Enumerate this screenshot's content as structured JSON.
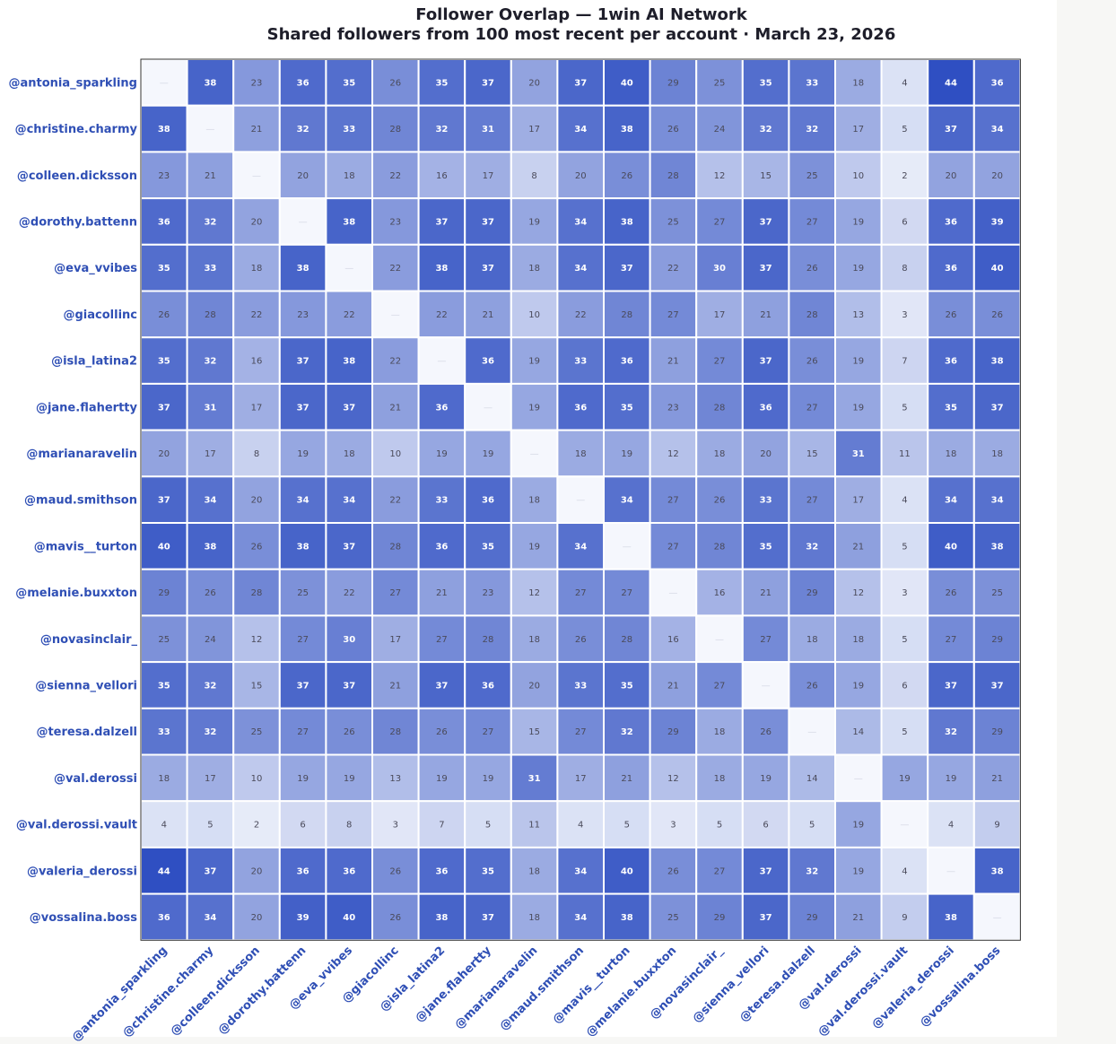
{
  "chart_data": {
    "type": "heatmap",
    "title": "Follower Overlap — 1win AI Network",
    "subtitle": "Shared followers from 100 most recent per account · March 23, 2026",
    "diagonal_label": "—",
    "labels": [
      "@antonia_sparkling",
      "@christine.charmy",
      "@colleen.dicksson",
      "@dorothy.battenn",
      "@eva_vvibes",
      "@giacollinc",
      "@isla_latina2",
      "@jane.flahertty",
      "@marianaravelin",
      "@maud.smithson",
      "@mavis__turton",
      "@melanie.buxxton",
      "@novasinclair_",
      "@sienna_vellori",
      "@teresa.dalzell",
      "@val.derossi",
      "@val.derossi.vault",
      "@valeria_derossi",
      "@vossalina.boss"
    ],
    "values": [
      [
        null,
        38,
        23,
        36,
        35,
        26,
        35,
        37,
        20,
        37,
        40,
        29,
        25,
        35,
        33,
        18,
        4,
        44,
        36
      ],
      [
        38,
        null,
        21,
        32,
        33,
        28,
        32,
        31,
        17,
        34,
        38,
        26,
        24,
        32,
        32,
        17,
        5,
        37,
        34
      ],
      [
        23,
        21,
        null,
        20,
        18,
        22,
        16,
        17,
        8,
        20,
        26,
        28,
        12,
        15,
        25,
        10,
        2,
        20,
        20
      ],
      [
        36,
        32,
        20,
        null,
        38,
        23,
        37,
        37,
        19,
        34,
        38,
        25,
        27,
        37,
        27,
        19,
        6,
        36,
        39
      ],
      [
        35,
        33,
        18,
        38,
        null,
        22,
        38,
        37,
        18,
        34,
        37,
        22,
        30,
        37,
        26,
        19,
        8,
        36,
        40
      ],
      [
        26,
        28,
        22,
        23,
        22,
        null,
        22,
        21,
        10,
        22,
        28,
        27,
        17,
        21,
        28,
        13,
        3,
        26,
        26
      ],
      [
        35,
        32,
        16,
        37,
        38,
        22,
        null,
        36,
        19,
        33,
        36,
        21,
        27,
        37,
        26,
        19,
        7,
        36,
        38
      ],
      [
        37,
        31,
        17,
        37,
        37,
        21,
        36,
        null,
        19,
        36,
        35,
        23,
        28,
        36,
        27,
        19,
        5,
        35,
        37
      ],
      [
        20,
        17,
        8,
        19,
        18,
        10,
        19,
        19,
        null,
        18,
        19,
        12,
        18,
        20,
        15,
        31,
        11,
        18,
        18
      ],
      [
        37,
        34,
        20,
        34,
        34,
        22,
        33,
        36,
        18,
        null,
        34,
        27,
        26,
        33,
        27,
        17,
        4,
        34,
        34
      ],
      [
        40,
        38,
        26,
        38,
        37,
        28,
        36,
        35,
        19,
        34,
        null,
        27,
        28,
        35,
        32,
        21,
        5,
        40,
        38
      ],
      [
        29,
        26,
        28,
        25,
        22,
        27,
        21,
        23,
        12,
        27,
        27,
        null,
        16,
        21,
        29,
        12,
        3,
        26,
        25
      ],
      [
        25,
        24,
        12,
        27,
        30,
        17,
        27,
        28,
        18,
        26,
        28,
        16,
        null,
        27,
        18,
        18,
        5,
        27,
        29
      ],
      [
        35,
        32,
        15,
        37,
        37,
        21,
        37,
        36,
        20,
        33,
        35,
        21,
        27,
        null,
        26,
        19,
        6,
        37,
        37
      ],
      [
        33,
        32,
        25,
        27,
        26,
        28,
        26,
        27,
        15,
        27,
        32,
        29,
        18,
        26,
        null,
        14,
        5,
        32,
        29
      ],
      [
        18,
        17,
        10,
        19,
        19,
        13,
        19,
        19,
        31,
        17,
        21,
        12,
        18,
        19,
        14,
        null,
        19,
        19,
        21
      ],
      [
        4,
        5,
        2,
        6,
        8,
        3,
        7,
        5,
        11,
        4,
        5,
        3,
        5,
        6,
        5,
        19,
        null,
        4,
        9
      ],
      [
        44,
        37,
        20,
        36,
        36,
        26,
        36,
        35,
        18,
        34,
        40,
        26,
        27,
        37,
        32,
        19,
        4,
        null,
        38
      ],
      [
        36,
        34,
        20,
        39,
        40,
        26,
        38,
        37,
        18,
        34,
        38,
        25,
        29,
        37,
        29,
        21,
        9,
        38,
        null
      ]
    ],
    "colors": {
      "low": "#f2f5fc",
      "high": "#2f4fc2",
      "diagonal": "#f5f7fd",
      "border": "#ffffff",
      "frame": "#333333",
      "label_dark": "#ffffff",
      "label_light": "#4a4a5a",
      "tick": "#2f4fb5"
    },
    "value_range": [
      0,
      44
    ],
    "grid": false,
    "legend": "none"
  }
}
